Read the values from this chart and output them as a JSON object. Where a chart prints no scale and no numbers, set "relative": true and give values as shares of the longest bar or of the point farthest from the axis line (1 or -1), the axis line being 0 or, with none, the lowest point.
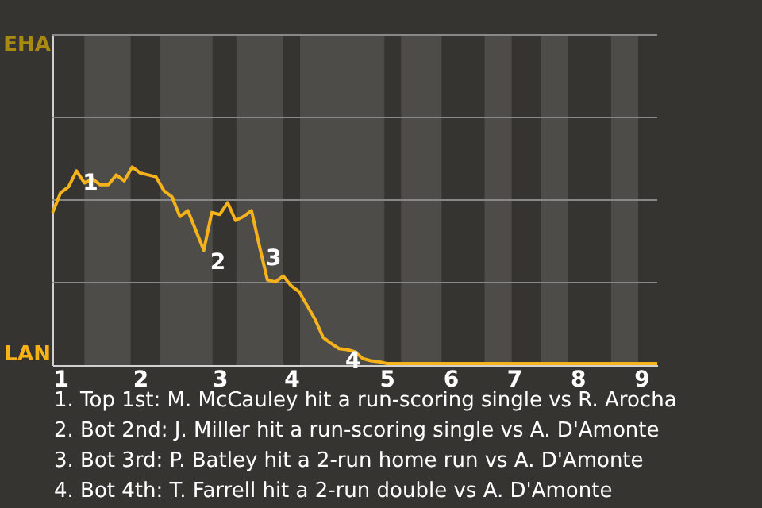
{
  "chart_data": {
    "type": "line",
    "categories": [
      null,
      "1",
      null,
      null,
      null,
      null,
      null,
      null,
      null,
      null,
      null,
      "2",
      null,
      null,
      null,
      null,
      null,
      null,
      null,
      null,
      null,
      "3",
      null,
      null,
      null,
      null,
      null,
      null,
      null,
      null,
      "4",
      null,
      null,
      null,
      null,
      null,
      null,
      null,
      null,
      null,
      null,
      null,
      "5",
      null,
      null,
      null,
      null,
      null,
      null,
      null,
      "6",
      null,
      null,
      null,
      null,
      null,
      null,
      null,
      "7",
      null,
      null,
      null,
      null,
      null,
      null,
      null,
      "8",
      null,
      null,
      null,
      null,
      null,
      null,
      null,
      "9",
      null,
      null
    ],
    "series": [
      {
        "color": "#f5b21b",
        "values": [
          0.77,
          0.87,
          0.9,
          0.98,
          0.92,
          0.94,
          0.91,
          0.91,
          0.96,
          0.93,
          1,
          0.97,
          0.96,
          0.95,
          0.88,
          0.85,
          0.75,
          0.78,
          0.68,
          0.58,
          0.77,
          0.76,
          0.82,
          0.73,
          0.75,
          0.78,
          0.6,
          0.43,
          0.42,
          0.45,
          0.4,
          0.37,
          0.3,
          0.23,
          0.14,
          0.11,
          0.083,
          0.078,
          0.067,
          0.033,
          0.022,
          0.017,
          0.008,
          0.008,
          0.008,
          0.008,
          0.008,
          0.008,
          0.008,
          0.008,
          0.008,
          0.008,
          0.008,
          0.008,
          0.008,
          0.008,
          0.008,
          0.008,
          0.008,
          0.008,
          0.008,
          0.008,
          0.008,
          0.008,
          0.008,
          0.008,
          0.008,
          0.008,
          0.008,
          0.008,
          0.008,
          0.008,
          0.008,
          0.008,
          0.008,
          0.008,
          0.008
        ]
      }
    ],
    "relative": true,
    "ref_lines": [
      {
        "axis": "y",
        "value": 0.4167,
        "color": "#8a8886"
      },
      {
        "axis": "y",
        "value": 0.8333,
        "color": "#8a8886"
      },
      {
        "axis": "y",
        "value": 1.25,
        "color": "#8a8886"
      },
      {
        "axis": "y",
        "value": 1.6667,
        "color": "#8a8886"
      }
    ],
    "marker": "none",
    "line_style": "solid",
    "annotations": [
      "EHA",
      "LAN",
      "1",
      "2",
      "3",
      "4",
      "1. Top 1st: M. McCauley hit a run-scoring single vs R. Arocha",
      "2. Bot 2nd: J. Miller hit a run-scoring single vs A. D'Amonte",
      "3. Bot 3rd: P. Batley hit a 2-run home run vs A. D'Amonte",
      "4. Bot 4th: T. Farrell hit a 2-run double vs A. D'Amonte"
    ]
  }
}
